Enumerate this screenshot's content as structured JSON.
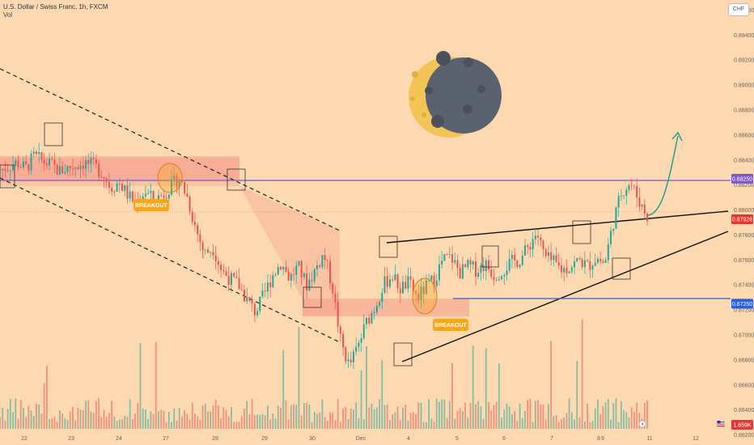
{
  "header": {
    "symbol_line": "U.S. Dollar / Swiss Franc, 1h, FXCM",
    "indicator_line": "Vol",
    "currency_button": "CHF"
  },
  "annotations": {
    "breakout_1": "BREAKOUT",
    "breakout_2": "BREAKOUT"
  },
  "colors": {
    "background": "#fcd9b0",
    "channel_fill": "#f59a8a",
    "up": "#26a69a",
    "down": "#ef5350",
    "resistance_line": "#7b5cc4",
    "support_line": "#2e5fd6",
    "current_price": "#e53935",
    "breakout_tag": "#f5a623",
    "arrow": "#2a9d8f"
  },
  "icons": {
    "moon": "crescent-moon-icon",
    "bolt": "lightning-icon",
    "flag": "us-flag-icon"
  },
  "chart_data": {
    "type": "candlestick",
    "title": "U.S. Dollar / Swiss Franc, 1h, FXCM",
    "x_ticks": [
      "22",
      "23",
      "24",
      "27",
      "28",
      "29",
      "30",
      "Dec",
      "4",
      "5",
      "6",
      "7",
      "8",
      "9",
      "11",
      "12"
    ],
    "y_ticks": [
      0.862,
      0.864,
      0.866,
      0.868,
      0.87,
      0.872,
      0.874,
      0.876,
      0.878,
      0.88,
      0.882,
      0.884,
      0.886,
      0.888,
      0.89,
      0.892,
      0.894,
      0.896
    ],
    "ylim": [
      0.8612,
      0.8968
    ],
    "price_tags": [
      {
        "label": "0.88250",
        "value": 0.8825,
        "color": "#7b5cc4"
      },
      {
        "label": "0.87926",
        "value": 0.87926,
        "color": "#e53935"
      },
      {
        "label": "0.87250",
        "value": 0.8725,
        "color": "#2e5fd6"
      },
      {
        "label": "1.659K",
        "value": 0.862,
        "color": "#e53935"
      }
    ],
    "horizontal_levels": [
      {
        "name": "resistance",
        "value": 0.8825
      },
      {
        "name": "support",
        "value": 0.8725
      }
    ],
    "price_path": [
      [
        0,
        0.8832
      ],
      [
        2,
        0.8838
      ],
      [
        3,
        0.8833
      ],
      [
        4,
        0.8843
      ],
      [
        5,
        0.8839
      ],
      [
        6,
        0.8836
      ],
      [
        7,
        0.8831
      ],
      [
        8,
        0.8834
      ],
      [
        10,
        0.8838
      ],
      [
        11,
        0.8835
      ],
      [
        12,
        0.883
      ],
      [
        13,
        0.8818
      ],
      [
        14,
        0.8822
      ],
      [
        15,
        0.8812
      ],
      [
        16,
        0.8805
      ],
      [
        17,
        0.8815
      ],
      [
        18,
        0.8808
      ],
      [
        19,
        0.8812
      ],
      [
        20,
        0.8818
      ],
      [
        21,
        0.8826
      ],
      [
        22,
        0.881
      ],
      [
        23,
        0.8785
      ],
      [
        24,
        0.8765
      ],
      [
        25,
        0.877
      ],
      [
        26,
        0.8752
      ],
      [
        27,
        0.8745
      ],
      [
        28,
        0.874
      ],
      [
        29,
        0.8728
      ],
      [
        30,
        0.8718
      ],
      [
        31,
        0.8732
      ],
      [
        32,
        0.8748
      ],
      [
        33,
        0.8758
      ],
      [
        34,
        0.8745
      ],
      [
        35,
        0.8755
      ],
      [
        36,
        0.874
      ],
      [
        37,
        0.8752
      ],
      [
        38,
        0.8765
      ],
      [
        39,
        0.874
      ],
      [
        40,
        0.8695
      ],
      [
        41,
        0.8675
      ],
      [
        42,
        0.869
      ],
      [
        43,
        0.871
      ],
      [
        44,
        0.8722
      ],
      [
        45,
        0.874
      ],
      [
        46,
        0.8748
      ],
      [
        47,
        0.8737
      ],
      [
        48,
        0.8742
      ],
      [
        49,
        0.873
      ],
      [
        50,
        0.8738
      ],
      [
        51,
        0.8745
      ],
      [
        52,
        0.876
      ],
      [
        53,
        0.8762
      ],
      [
        54,
        0.875
      ],
      [
        55,
        0.8755
      ],
      [
        56,
        0.8752
      ],
      [
        57,
        0.8757
      ],
      [
        58,
        0.8748
      ],
      [
        59,
        0.8752
      ],
      [
        60,
        0.8758
      ],
      [
        61,
        0.876
      ],
      [
        62,
        0.877
      ],
      [
        63,
        0.8782
      ],
      [
        64,
        0.8762
      ],
      [
        65,
        0.8758
      ],
      [
        66,
        0.8752
      ],
      [
        67,
        0.8755
      ],
      [
        68,
        0.876
      ],
      [
        69,
        0.8755
      ],
      [
        70,
        0.8762
      ],
      [
        71,
        0.8757
      ],
      [
        72,
        0.879
      ],
      [
        73,
        0.8815
      ],
      [
        74,
        0.8822
      ],
      [
        75,
        0.8808
      ],
      [
        76,
        0.8795
      ]
    ]
  }
}
